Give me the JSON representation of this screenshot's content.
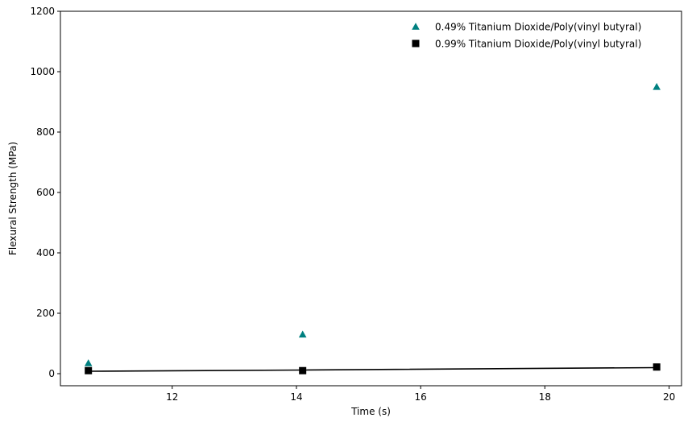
{
  "chart_data": {
    "type": "scatter",
    "title": "",
    "xlabel": "Time (s)",
    "ylabel": "Flexural Strength (MPa)",
    "xlim": [
      10.2,
      20.2
    ],
    "ylim": [
      -40,
      1200
    ],
    "xticks": [
      12,
      14,
      16,
      18,
      20
    ],
    "yticks": [
      0,
      200,
      400,
      600,
      800,
      1000,
      1200
    ],
    "grid": false,
    "legend_position": "top-right",
    "series": [
      {
        "name": "0.49% Titanium Dioxide/Poly(vinyl butyral)",
        "marker": "triangle",
        "color": "#008080",
        "x": [
          10.65,
          14.1,
          19.8
        ],
        "y": [
          35,
          130,
          950
        ]
      },
      {
        "name": "0.99% Titanium Dioxide/Poly(vinyl butyral)",
        "marker": "square",
        "color": "#000000",
        "x": [
          10.65,
          14.1,
          19.8
        ],
        "y": [
          10,
          10,
          22
        ]
      }
    ],
    "trendline": {
      "series": "0.99% Titanium Dioxide/Poly(vinyl butyral)",
      "color": "#000000",
      "x": [
        10.65,
        14.1,
        19.8
      ],
      "y": [
        8,
        12,
        20
      ]
    }
  }
}
